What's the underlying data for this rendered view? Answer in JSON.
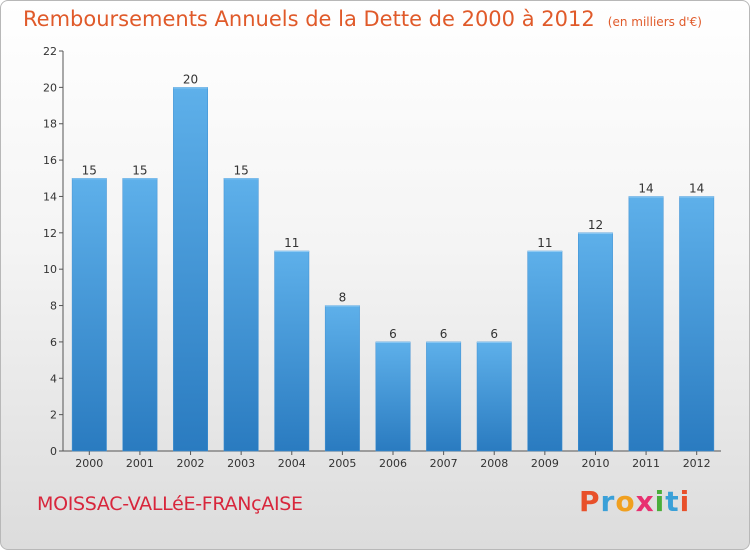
{
  "chart_data": {
    "type": "bar",
    "title": "Remboursements Annuels de la Dette de 2000 à 2012",
    "subtitle": "(en milliers d'€)",
    "categories": [
      "2000",
      "2001",
      "2002",
      "2003",
      "2004",
      "2005",
      "2006",
      "2007",
      "2008",
      "2009",
      "2010",
      "2011",
      "2012"
    ],
    "values": [
      15,
      15,
      20,
      15,
      11,
      8,
      6,
      6,
      6,
      11,
      12,
      14,
      14
    ],
    "yticks": [
      "0",
      "2",
      "4",
      "6",
      "8",
      "10",
      "12",
      "14",
      "16",
      "18",
      "20",
      "22"
    ],
    "ylim": [
      0,
      22
    ],
    "grid": false,
    "bar_color": "#4a9fdf"
  },
  "footer": {
    "commune": "MOISSAC-VALLéE-FRANçAISE",
    "brand": "Proxiti",
    "brand_letter_colors": [
      "#e8502a",
      "#3aa0d8",
      "#f0a020",
      "#e83070",
      "#4aae3a",
      "#3aa0d8",
      "#e8502a"
    ]
  }
}
